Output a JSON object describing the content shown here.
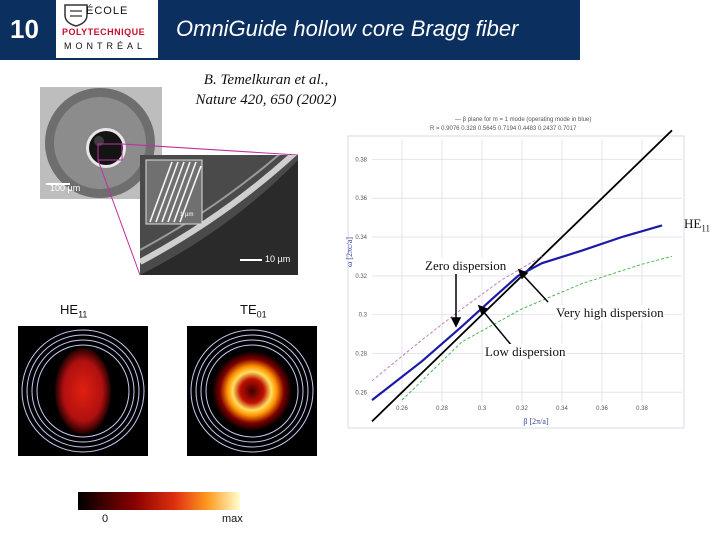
{
  "slide": {
    "number": "10",
    "title": "OmniGuide hollow core Bragg fiber",
    "logo": {
      "line1": "ÉCOLE",
      "line2": "POLYTECHNIQUE",
      "line3": "MONTRÉAL"
    },
    "citation": {
      "line1": "B. Temelkuran et al.,",
      "line2": "Nature 420, 650 (2002)"
    }
  },
  "micrograph": {
    "scale_main": "100 µm",
    "scale_zoom": "10 µm",
    "scale_inset": "1 µm"
  },
  "mode_profiles": {
    "left": {
      "name": "HE",
      "sub": "11"
    },
    "right": {
      "name": "TE",
      "sub": "01"
    },
    "colorbar": {
      "min": "0",
      "max": "max"
    }
  },
  "chart_data": {
    "type": "line",
    "header_line1": "— β plane for m = 1 mode (operating mode in blue)",
    "header_line2": "R = 0.9076 0.328 0.5645 0.7194 0.4483 0.2437 0.7017",
    "ylabel": "ω [2πc/a]",
    "xlabel": "β [2π/a]",
    "x_ticks": [
      "0.26",
      "0.28",
      "0.3",
      "0.32",
      "0.34",
      "0.36",
      "0.38"
    ],
    "y_ticks": [
      "0.38",
      "0.36",
      "0.34",
      "0.32",
      "0.3",
      "0.28",
      "0.26"
    ],
    "xlim": [
      0.245,
      0.4
    ],
    "ylim": [
      0.255,
      0.39
    ],
    "series": [
      {
        "role": "light line",
        "color": "#000000",
        "x": [
          0.245,
          0.395
        ],
        "y": [
          0.245,
          0.395
        ]
      },
      {
        "role": "HE11 operating mode",
        "color": "#1a1aa6",
        "x": [
          0.245,
          0.27,
          0.29,
          0.305,
          0.318,
          0.33,
          0.35,
          0.37,
          0.39
        ],
        "y": [
          0.256,
          0.276,
          0.294,
          0.308,
          0.32,
          0.3265,
          0.333,
          0.34,
          0.346
        ]
      },
      {
        "role": "upper mode",
        "color": "#c070c0",
        "x": [
          0.245,
          0.27,
          0.29,
          0.31,
          0.33
        ],
        "y": [
          0.266,
          0.287,
          0.303,
          0.318,
          0.33
        ]
      },
      {
        "role": "lower mode",
        "color": "#40b040",
        "x": [
          0.26,
          0.29,
          0.32,
          0.35,
          0.38,
          0.395
        ],
        "y": [
          0.256,
          0.286,
          0.303,
          0.316,
          0.326,
          0.33
        ]
      }
    ],
    "annotations": [
      {
        "text": "HE",
        "sub": "11"
      },
      {
        "text": "Zero dispersion"
      },
      {
        "text": "Very high dispersion"
      },
      {
        "text": "Low dispersion"
      }
    ]
  }
}
